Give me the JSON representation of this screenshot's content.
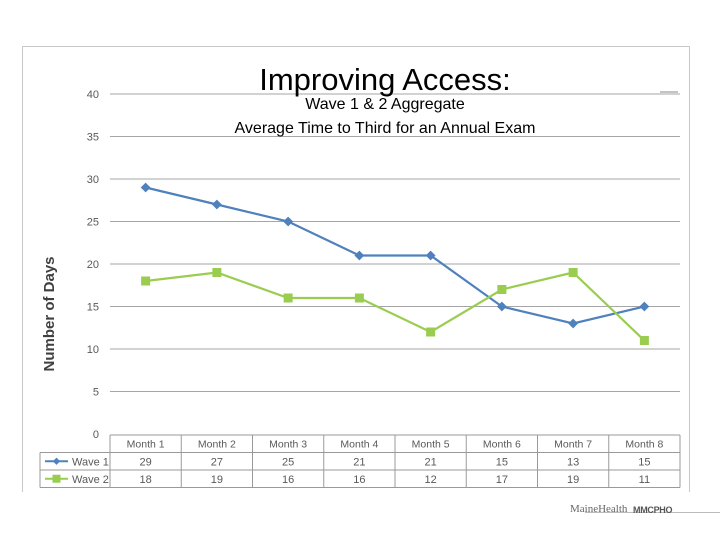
{
  "slide": {
    "title": "Improving Access:",
    "subtitle_line1": "Wave 1 & 2 Aggregate",
    "subtitle_line2": "Average Time to Third for an Annual Exam",
    "footer_left": "MaineHealth",
    "footer_right": "MMCPHO"
  },
  "colors": {
    "wave1": "#4f81bd",
    "wave2": "#9acd4f",
    "grid": "#a6a6a6",
    "axis_text": "#595959"
  },
  "chart_data": {
    "type": "line",
    "title": "Improving Access:",
    "subtitle": "Wave 1 & 2 Aggregate Average Time to Third for an Annual Exam",
    "xlabel": "",
    "ylabel": "Number of Days",
    "ylim": [
      0,
      40
    ],
    "yticks": [
      0,
      5,
      10,
      15,
      20,
      25,
      30,
      35,
      40
    ],
    "grid": true,
    "categories": [
      "Month 1",
      "Month 2",
      "Month 3",
      "Month 4",
      "Month 5",
      "Month 6",
      "Month 7",
      "Month 8"
    ],
    "series": [
      {
        "name": "Wave 1",
        "marker": "diamond",
        "color": "#4f81bd",
        "values": [
          29,
          27,
          25,
          21,
          21,
          15,
          13,
          15
        ]
      },
      {
        "name": "Wave 2",
        "marker": "square",
        "color": "#9acd4f",
        "values": [
          18,
          19,
          16,
          16,
          12,
          17,
          19,
          11
        ]
      }
    ],
    "data_table": true
  }
}
